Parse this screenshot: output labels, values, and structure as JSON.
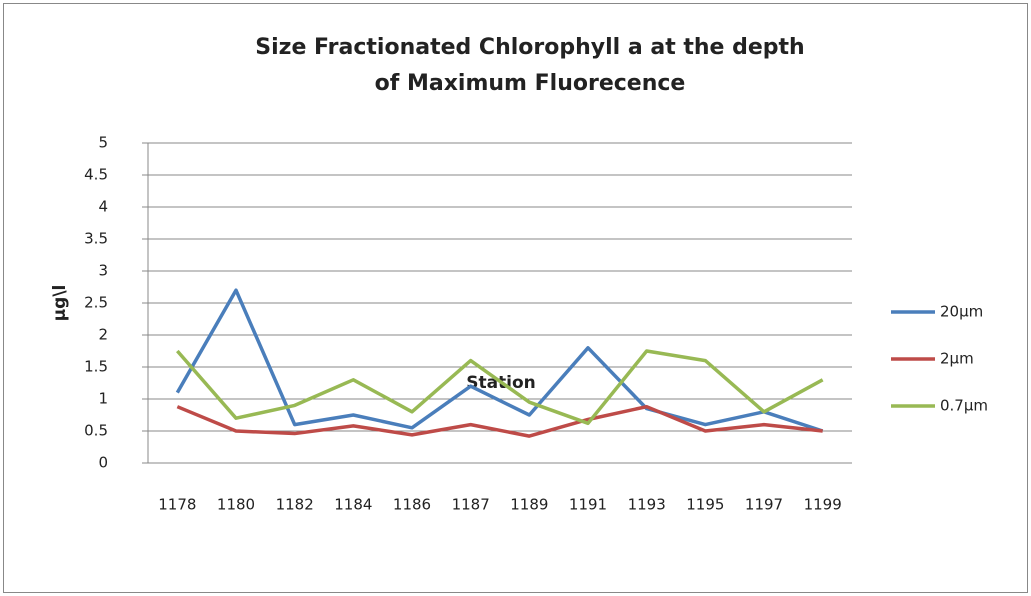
{
  "chart_data": {
    "type": "line",
    "title": "Size Fractionated Chlorophyll a at the depth of Maximum Fluorecence",
    "x_label": "Station",
    "y_label": "µg\\l",
    "categories": [
      "1178",
      "1180",
      "1182",
      "1184",
      "1186",
      "1187",
      "1189",
      "1191",
      "1193",
      "1195",
      "1197",
      "1199"
    ],
    "series": [
      {
        "name": "20µm",
        "color": "#4a7ebb",
        "values": [
          1.1,
          2.7,
          0.6,
          0.75,
          0.55,
          1.2,
          0.75,
          1.8,
          0.85,
          0.6,
          0.8,
          0.5
        ]
      },
      {
        "name": "2µm",
        "color": "#be4b48",
        "values": [
          0.88,
          0.5,
          0.46,
          0.58,
          0.44,
          0.6,
          0.42,
          0.68,
          0.88,
          0.5,
          0.6,
          0.5
        ]
      },
      {
        "name": "0.7µm",
        "color": "#98b954",
        "values": [
          1.75,
          0.7,
          0.9,
          1.3,
          0.8,
          1.6,
          0.95,
          0.62,
          1.75,
          1.6,
          0.8,
          1.3
        ]
      }
    ],
    "ylim": [
      0,
      5
    ],
    "yticks": [
      0,
      0.5,
      1,
      1.5,
      2,
      2.5,
      3,
      3.5,
      4,
      4.5,
      5
    ],
    "grid": true,
    "legend": "right"
  }
}
